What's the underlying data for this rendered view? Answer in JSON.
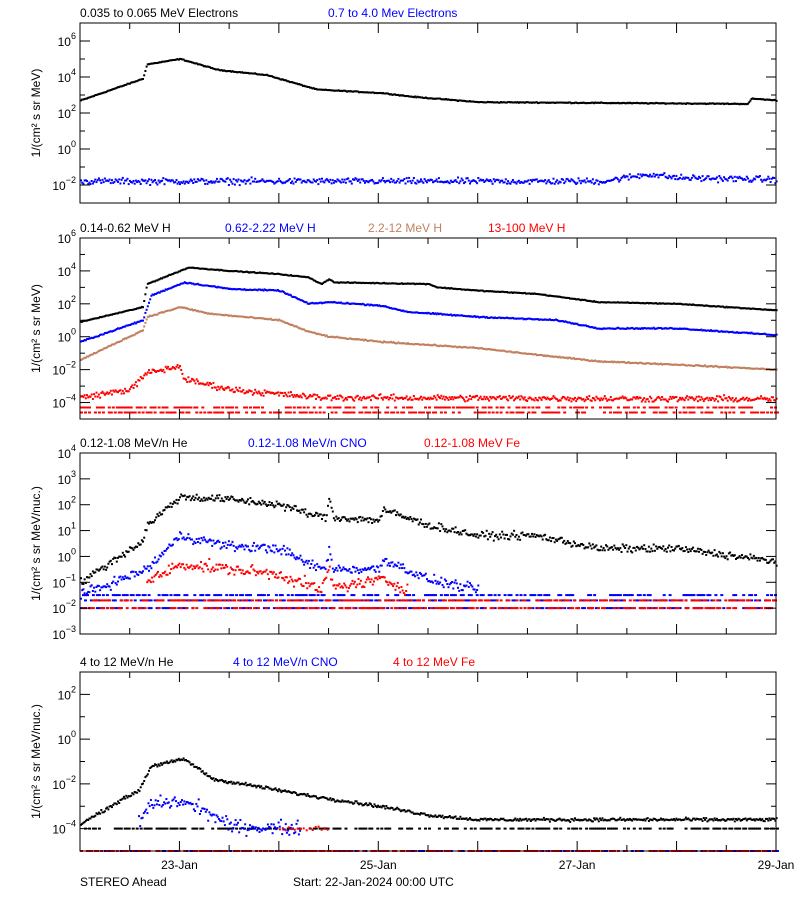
{
  "chart_data": [
    {
      "type": "scatter",
      "ylabel": "1/(cm² s sr MeV)",
      "yscale": "log",
      "ylim": [
        0.001,
        10000000.0
      ],
      "y_ticks": [
        0.01,
        1,
        100.0,
        10000.0,
        1000000.0
      ],
      "series": [
        {
          "name": "0.035 to 0.065 MeV Electrons",
          "color": "#000000",
          "points": [
            [
              "2024-01-22T00:00",
              500.0
            ],
            [
              "2024-01-22T15:00",
              8000.0
            ],
            [
              "2024-01-22T16:00",
              50000.0
            ],
            [
              "2024-01-23T00:00",
              100000.0
            ],
            [
              "2024-01-23T09:00",
              25000.0
            ],
            [
              "2024-01-23T21:00",
              12600.0
            ],
            [
              "2024-01-24T03:00",
              5000.0
            ],
            [
              "2024-01-24T09:00",
              2000.0
            ],
            [
              "2024-01-25T01:00",
              1260.0
            ],
            [
              "2024-01-25T08:00",
              800.0
            ],
            [
              "2024-01-26T00:00",
              400.0
            ],
            [
              "2024-01-28T17:00",
              320.0
            ],
            [
              "2024-01-28T18:00",
              630.0
            ],
            [
              "2024-01-29T00:00",
              500.0
            ]
          ]
        },
        {
          "name": "0.7 to 4.0 Mev Electrons",
          "color": "#0000ff",
          "points": [
            [
              "2024-01-22T00:00",
              0.016
            ],
            [
              "2024-01-27T06:00",
              0.016
            ],
            [
              "2024-01-27T17:00",
              0.04
            ],
            [
              "2024-01-28T00:00",
              0.025
            ],
            [
              "2024-01-29T00:00",
              0.02
            ]
          ]
        }
      ]
    },
    {
      "type": "scatter",
      "ylabel": "1/(cm² s sr MeV)",
      "yscale": "log",
      "ylim": [
        1e-05,
        1000000.0
      ],
      "y_ticks": [
        0.0001,
        0.01,
        1,
        100.0,
        10000.0,
        1000000.0
      ],
      "series": [
        {
          "name": "0.14-0.62 MeV H",
          "color": "#000000",
          "points": [
            [
              "2024-01-22T00:00",
              8
            ],
            [
              "2024-01-22T15:00",
              63
            ],
            [
              "2024-01-22T16:00",
              1600.0
            ],
            [
              "2024-01-23T00:00",
              10000.0
            ],
            [
              "2024-01-23T02:00",
              16000.0
            ],
            [
              "2024-01-23T12:00",
              10000.0
            ],
            [
              "2024-01-24T00:00",
              6300.0
            ],
            [
              "2024-01-24T07:00",
              4000.0
            ],
            [
              "2024-01-24T10:00",
              1600.0
            ],
            [
              "2024-01-24T12:00",
              3200.0
            ],
            [
              "2024-01-24T13:00",
              2000.0
            ],
            [
              "2024-01-25T12:00",
              1600.0
            ],
            [
              "2024-01-25T14:00",
              1000.0
            ],
            [
              "2024-01-26T00:00",
              630.0
            ],
            [
              "2024-01-26T14:00",
              400.0
            ],
            [
              "2024-01-27T05:00",
              126.0
            ],
            [
              "2024-01-28T00:00",
              100.0
            ],
            [
              "2024-01-29T00:00",
              40
            ]
          ]
        },
        {
          "name": "0.62-2.22 MeV H",
          "color": "#0000ff",
          "points": [
            [
              "2024-01-22T00:00",
              0.5
            ],
            [
              "2024-01-22T15:00",
              10
            ],
            [
              "2024-01-22T17:00",
              320.0
            ],
            [
              "2024-01-23T01:00",
              2000.0
            ],
            [
              "2024-01-23T12:00",
              800.0
            ],
            [
              "2024-01-24T00:00",
              630.0
            ],
            [
              "2024-01-24T07:00",
              100.0
            ],
            [
              "2024-01-24T12:00",
              126.0
            ],
            [
              "2024-01-25T00:00",
              80
            ],
            [
              "2024-01-25T07:00",
              32
            ],
            [
              "2024-01-26T00:00",
              16
            ],
            [
              "2024-01-26T19:00",
              10
            ],
            [
              "2024-01-27T05:00",
              3.2
            ],
            [
              "2024-01-28T00:00",
              3.2
            ],
            [
              "2024-01-29T00:00",
              1.26
            ]
          ]
        },
        {
          "name": "2.2-12 MeV H",
          "color": "#c08060",
          "points": [
            [
              "2024-01-22T00:00",
              0.04
            ],
            [
              "2024-01-22T15:00",
              2.5
            ],
            [
              "2024-01-22T16:00",
              16
            ],
            [
              "2024-01-23T00:00",
              63
            ],
            [
              "2024-01-23T07:00",
              25
            ],
            [
              "2024-01-24T00:00",
              10
            ],
            [
              "2024-01-24T07:00",
              2
            ],
            [
              "2024-01-24T12:00",
              1
            ],
            [
              "2024-01-25T00:00",
              0.5
            ],
            [
              "2024-01-26T00:00",
              0.2
            ],
            [
              "2024-01-26T14:00",
              0.08
            ],
            [
              "2024-01-27T05:00",
              0.032
            ],
            [
              "2024-01-28T00:00",
              0.02
            ],
            [
              "2024-01-29T00:00",
              0.01
            ]
          ]
        },
        {
          "name": "13-100 MeV H",
          "color": "#ff0000",
          "points": [
            [
              "2024-01-22T00:00",
              0.0002
            ],
            [
              "2024-01-22T12:00",
              0.00063
            ],
            [
              "2024-01-22T16:00",
              0.0063
            ],
            [
              "2024-01-23T00:00",
              0.016
            ],
            [
              "2024-01-23T01:00",
              0.0025
            ],
            [
              "2024-01-23T12:00",
              0.00063
            ],
            [
              "2024-01-24T00:00",
              0.00032
            ],
            [
              "2024-01-24T10:00",
              0.0002
            ],
            [
              "2024-01-29T00:00",
              0.00016
            ]
          ],
          "floors": [
            5e-05,
            2.5e-05
          ]
        }
      ]
    },
    {
      "type": "scatter",
      "ylabel": "1/(cm² s sr MeV/nuc.)",
      "yscale": "log",
      "ylim": [
        0.001,
        10000.0
      ],
      "y_ticks": [
        0.001,
        0.01,
        0.1,
        1,
        10,
        100.0,
        1000.0,
        10000.0
      ],
      "series": [
        {
          "name": "0.12-1.08 MeV/n He",
          "color": "#000000",
          "points": [
            [
              "2024-01-22T00:00",
              0.1
            ],
            [
              "2024-01-22T15:00",
              4
            ],
            [
              "2024-01-22T16:00",
              16
            ],
            [
              "2024-01-23T00:00",
              200.0
            ],
            [
              "2024-01-23T12:00",
              160.0
            ],
            [
              "2024-01-24T00:00",
              100.0
            ],
            [
              "2024-01-24T08:00",
              40
            ],
            [
              "2024-01-24T11:00",
              32
            ],
            [
              "2024-01-24T12:00",
              160.0
            ],
            [
              "2024-01-24T13:00",
              32
            ],
            [
              "2024-01-25T00:00",
              25
            ],
            [
              "2024-01-25T01:00",
              63
            ],
            [
              "2024-01-25T12:00",
              16
            ],
            [
              "2024-01-26T00:00",
              6.3
            ],
            [
              "2024-01-26T14:00",
              6.3
            ],
            [
              "2024-01-27T05:00",
              2
            ],
            [
              "2024-01-28T00:00",
              2
            ],
            [
              "2024-01-29T00:00",
              0.63
            ]
          ]
        },
        {
          "name": "0.12-1.08 MeV/n CNO",
          "color": "#0000ff",
          "points": [
            [
              "2024-01-22T00:00",
              0.032
            ],
            [
              "2024-01-22T16:00",
              0.32
            ],
            [
              "2024-01-23T00:00",
              6.3
            ],
            [
              "2024-01-23T12:00",
              2.5
            ],
            [
              "2024-01-24T00:00",
              2
            ],
            [
              "2024-01-24T07:00",
              0.5
            ],
            [
              "2024-01-24T11:00",
              0.32
            ],
            [
              "2024-01-24T12:00",
              2
            ],
            [
              "2024-01-24T13:00",
              0.32
            ],
            [
              "2024-01-25T00:00",
              0.32
            ],
            [
              "2024-01-25T01:00",
              0.8
            ],
            [
              "2024-01-25T12:00",
              0.126
            ],
            [
              "2024-01-26T00:00",
              0.05
            ]
          ],
          "floors": [
            0.032,
            0.02,
            0.01
          ]
        },
        {
          "name": "0.12-1.08 MeV Fe",
          "color": "#ff0000",
          "points": [
            [
              "2024-01-22T16:00",
              0.1
            ],
            [
              "2024-01-23T00:00",
              0.5
            ],
            [
              "2024-01-23T12:00",
              0.32
            ],
            [
              "2024-01-24T00:00",
              0.2
            ],
            [
              "2024-01-24T10:00",
              0.05
            ],
            [
              "2024-01-24T12:00",
              0.32
            ],
            [
              "2024-01-24T13:00",
              0.063
            ],
            [
              "2024-01-25T01:00",
              0.126
            ],
            [
              "2024-01-25T07:00",
              0.05
            ]
          ],
          "floors": [
            0.02,
            0.01
          ]
        }
      ]
    },
    {
      "type": "scatter",
      "ylabel": "1/(cm² s sr MeV/nuc.)",
      "yscale": "log",
      "ylim": [
        1e-05,
        1000.0
      ],
      "y_ticks": [
        0.0001,
        0.01,
        1,
        100.0
      ],
      "series": [
        {
          "name": "4 to 12 MeV/n He",
          "color": "#000000",
          "points": [
            [
              "2024-01-22T00:00",
              0.00016
            ],
            [
              "2024-01-22T09:00",
              0.0016
            ],
            [
              "2024-01-22T14:00",
              0.005
            ],
            [
              "2024-01-22T17:00",
              0.063
            ],
            [
              "2024-01-23T01:00",
              0.126
            ],
            [
              "2024-01-23T08:00",
              0.016
            ],
            [
              "2024-01-23T18:00",
              0.008
            ],
            [
              "2024-01-24T06:00",
              0.0032
            ],
            [
              "2024-01-25T00:00",
              0.001
            ],
            [
              "2024-01-25T12:00",
              0.0004
            ],
            [
              "2024-01-26T00:00",
              0.00025
            ],
            [
              "2024-01-29T00:00",
              0.00025
            ]
          ],
          "floors": [
            0.0001
          ]
        },
        {
          "name": "4 to 12 MeV/n CNO",
          "color": "#0000ff",
          "points": [
            [
              "2024-01-22T14:00",
              0.0002
            ],
            [
              "2024-01-22T17:00",
              0.00126
            ],
            [
              "2024-01-23T00:00",
              0.0016
            ],
            [
              "2024-01-23T05:00",
              0.0008
            ],
            [
              "2024-01-23T12:00",
              0.000126
            ],
            [
              "2024-01-24T05:00",
              0.0001
            ]
          ],
          "floors": [
            1e-05
          ]
        },
        {
          "name": "4 to 12 MeV Fe",
          "color": "#ff0000",
          "points": [
            [
              "2024-01-24T00:00",
              0.0001
            ],
            [
              "2024-01-24T12:00",
              0.0001
            ]
          ],
          "floors": [
            1e-05
          ]
        }
      ]
    }
  ],
  "x_axis": {
    "start": "2024-01-22T00:00",
    "end": "2024-01-29T00:00",
    "tick_labels": [
      "23-Jan",
      "25-Jan",
      "27-Jan",
      "29-Jan"
    ]
  },
  "footer": {
    "spacecraft": "STEREO Ahead",
    "start": "Start: 22-Jan-2024 00:00 UTC"
  }
}
